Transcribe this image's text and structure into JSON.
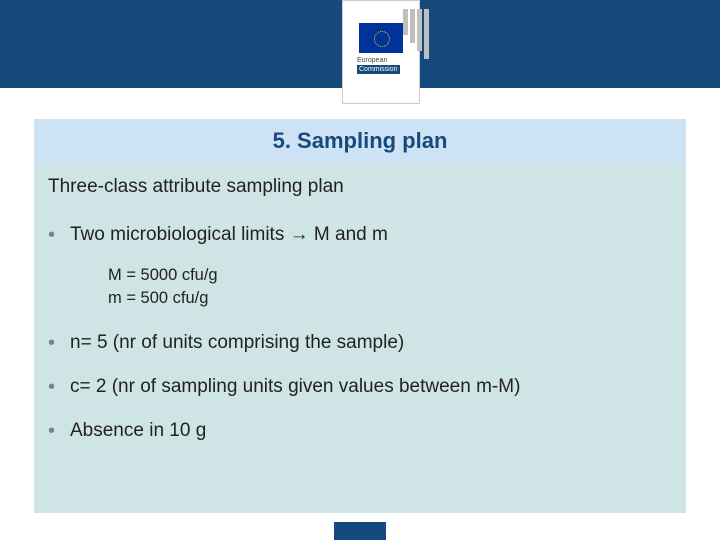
{
  "header": {
    "logo_line1": "European",
    "logo_line2": "Commission"
  },
  "title": "5. Sampling plan",
  "subtitle": "Three-class attribute sampling plan",
  "bullets": {
    "b1": "Two microbiological limits → M and m",
    "b1_sub1": "M = 5000 cfu/g",
    "b1_sub2": "m = 500 cfu/g",
    "b2": "n= 5 (nr of units comprising the sample)",
    "b3": "c= 2 (nr of sampling units given values between m-M)",
    "b4": "Absence in 10 g"
  }
}
